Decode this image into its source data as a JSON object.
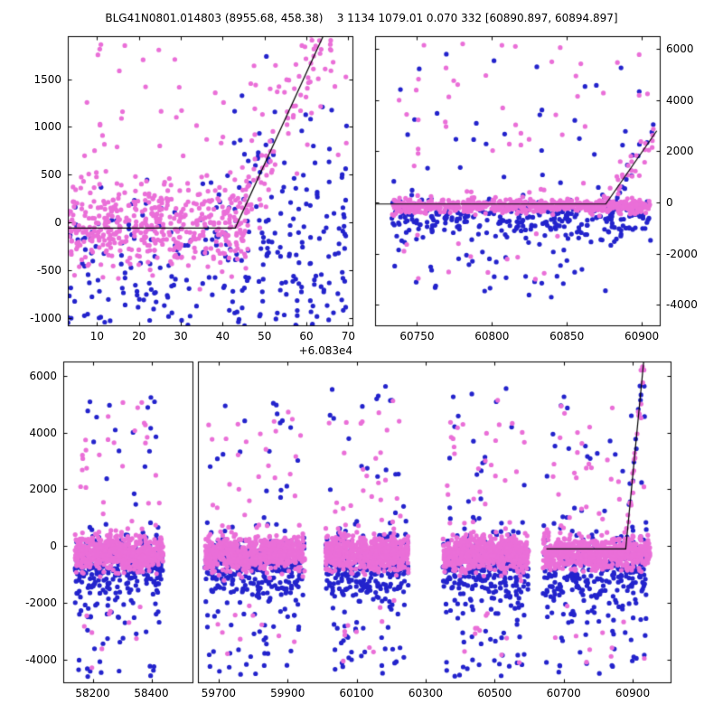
{
  "title": "BLG41N0801.014803 (8955.68, 458.38)    3 1134 1079.01 0.070 332 [60890.897, 60894.897]",
  "colors": {
    "magenta": "#ea6fd8",
    "blue": "#2323cc",
    "model_line": "#000000",
    "frame": "#000000",
    "background": "#ffffff"
  },
  "chart_data": [
    {
      "id": "top-left-panel",
      "type": "scatter",
      "xlim": [
        3,
        71
      ],
      "ylim": [
        -1080,
        1950
      ],
      "xticks": [
        10,
        20,
        30,
        40,
        50,
        60,
        70
      ],
      "yticks": [
        -1000,
        -500,
        0,
        500,
        1000,
        1500
      ],
      "ytick_side": "left",
      "x_offset_label": "+6.083e4",
      "model_line": [
        [
          3,
          -60
        ],
        [
          43,
          -60
        ],
        [
          64,
          1950
        ]
      ],
      "clusters": [
        {
          "color": "magenta",
          "n": 470,
          "x": [
            3,
            46
          ],
          "y_mean": -30,
          "y_sigma": 230
        },
        {
          "color": "magenta",
          "n": 90,
          "x": [
            43,
            66
          ],
          "along_line": true,
          "y_sigma": 250
        },
        {
          "color": "magenta",
          "n": 55,
          "x": [
            3,
            70
          ],
          "uniform": true,
          "y_min": 450,
          "y_max": 1900
        },
        {
          "color": "blue",
          "n": 240,
          "x": [
            3,
            70
          ],
          "y_mean": -430,
          "y_sigma": 420
        },
        {
          "color": "blue",
          "n": 50,
          "x": [
            42,
            70
          ],
          "y_mean": 520,
          "y_sigma": 400
        },
        {
          "color": "blue",
          "n": 35,
          "x": [
            3,
            70
          ],
          "uniform": true,
          "y_min": -1080,
          "y_max": -650
        }
      ]
    },
    {
      "id": "top-right-panel",
      "type": "scatter",
      "xlim": [
        60722,
        60912
      ],
      "ylim": [
        -4800,
        6500
      ],
      "xticks": [
        60750,
        60800,
        60850,
        60900
      ],
      "yticks": [
        -4000,
        -2000,
        0,
        2000,
        4000,
        6000
      ],
      "ytick_side": "right",
      "model_line": [
        [
          60722,
          -60
        ],
        [
          60876,
          -60
        ],
        [
          60910,
          2800
        ]
      ],
      "clusters": [
        {
          "color": "magenta",
          "n": 580,
          "x": [
            60733,
            60906
          ],
          "y_mean": -130,
          "y_sigma": 140
        },
        {
          "color": "blue",
          "n": 300,
          "x": [
            60733,
            60906
          ],
          "y_mean": -620,
          "y_sigma": 430
        },
        {
          "color": "magenta",
          "n": 45,
          "x": [
            60733,
            60906
          ],
          "uniform": true,
          "y_min": 300,
          "y_max": 6300
        },
        {
          "color": "blue",
          "n": 30,
          "x": [
            60733,
            60906
          ],
          "uniform": true,
          "y_min": 500,
          "y_max": 6000
        },
        {
          "color": "blue",
          "n": 40,
          "x": [
            60733,
            60906
          ],
          "uniform": true,
          "y_min": -3700,
          "y_max": -1300
        },
        {
          "color": "magenta",
          "n": 14,
          "x": [
            60733,
            60906
          ],
          "uniform": true,
          "y_min": -3000,
          "y_max": -1100
        },
        {
          "color": "magenta",
          "n": 32,
          "x": [
            60874,
            60908
          ],
          "along_line": true,
          "y_sigma": 350
        },
        {
          "color": "blue",
          "n": 16,
          "x": [
            60874,
            60908
          ],
          "along_line": true,
          "y_sigma": 450
        }
      ]
    },
    {
      "id": "bottom-panel",
      "type": "scatter",
      "ylim": [
        -4800,
        6500
      ],
      "yticks": [
        -4000,
        -2000,
        0,
        2000,
        4000,
        6000
      ],
      "ytick_side": "left",
      "segments": [
        {
          "xlim": [
            58100,
            58540
          ],
          "xticks": [
            58200,
            58400
          ],
          "width_frac": 0.215
        },
        {
          "xlim": [
            59640,
            61010
          ],
          "xticks": [
            59700,
            59900,
            60100,
            60300,
            60500,
            60700,
            60900
          ],
          "width_frac": 0.785
        }
      ],
      "model_line": [
        [
          60650,
          -100
        ],
        [
          60880,
          -100
        ],
        [
          60932,
          6500
        ]
      ],
      "clusters": [
        {
          "color": "magenta",
          "n": 620,
          "x": [
            58140,
            58440
          ],
          "y_mean": -250,
          "y_sigma": 300
        },
        {
          "color": "blue",
          "n": 300,
          "x": [
            58140,
            58440
          ],
          "y_mean": -800,
          "y_sigma": 650
        },
        {
          "color": "magenta",
          "n": 28,
          "x": [
            58150,
            58430
          ],
          "uniform": true,
          "y_min": 700,
          "y_max": 5200
        },
        {
          "color": "blue",
          "n": 30,
          "x": [
            58150,
            58430
          ],
          "uniform": true,
          "y_min": -4600,
          "y_max": -2300
        },
        {
          "color": "blue",
          "n": 18,
          "x": [
            58150,
            58430
          ],
          "uniform": true,
          "y_min": 1200,
          "y_max": 5700
        },
        {
          "color": "magenta",
          "n": 10,
          "x": [
            58150,
            58430
          ],
          "uniform": true,
          "y_min": -4300,
          "y_max": -1900
        },
        {
          "color": "magenta",
          "n": 620,
          "x": [
            59660,
            59950
          ],
          "y_mean": -250,
          "y_sigma": 300
        },
        {
          "color": "blue",
          "n": 300,
          "x": [
            59660,
            59950
          ],
          "y_mean": -800,
          "y_sigma": 650
        },
        {
          "color": "magenta",
          "n": 28,
          "x": [
            59670,
            59940
          ],
          "uniform": true,
          "y_min": 700,
          "y_max": 5200
        },
        {
          "color": "blue",
          "n": 30,
          "x": [
            59670,
            59940
          ],
          "uniform": true,
          "y_min": -4600,
          "y_max": -2300
        },
        {
          "color": "blue",
          "n": 18,
          "x": [
            59670,
            59940
          ],
          "uniform": true,
          "y_min": 1200,
          "y_max": 5700
        },
        {
          "color": "magenta",
          "n": 10,
          "x": [
            59670,
            59940
          ],
          "uniform": true,
          "y_min": -4300,
          "y_max": -1900
        },
        {
          "color": "magenta",
          "n": 620,
          "x": [
            60010,
            60250
          ],
          "y_mean": -250,
          "y_sigma": 300
        },
        {
          "color": "blue",
          "n": 300,
          "x": [
            60010,
            60250
          ],
          "y_mean": -800,
          "y_sigma": 650
        },
        {
          "color": "magenta",
          "n": 28,
          "x": [
            60020,
            60240
          ],
          "uniform": true,
          "y_min": 700,
          "y_max": 5200
        },
        {
          "color": "blue",
          "n": 30,
          "x": [
            60020,
            60240
          ],
          "uniform": true,
          "y_min": -4600,
          "y_max": -2300
        },
        {
          "color": "blue",
          "n": 18,
          "x": [
            60020,
            60240
          ],
          "uniform": true,
          "y_min": 1200,
          "y_max": 5700
        },
        {
          "color": "magenta",
          "n": 10,
          "x": [
            60020,
            60240
          ],
          "uniform": true,
          "y_min": -4300,
          "y_max": -1900
        },
        {
          "color": "magenta",
          "n": 620,
          "x": [
            60350,
            60600
          ],
          "y_mean": -250,
          "y_sigma": 300
        },
        {
          "color": "blue",
          "n": 300,
          "x": [
            60350,
            60600
          ],
          "y_mean": -800,
          "y_sigma": 650
        },
        {
          "color": "magenta",
          "n": 28,
          "x": [
            60360,
            60590
          ],
          "uniform": true,
          "y_min": 700,
          "y_max": 5200
        },
        {
          "color": "blue",
          "n": 30,
          "x": [
            60360,
            60590
          ],
          "uniform": true,
          "y_min": -4600,
          "y_max": -2300
        },
        {
          "color": "blue",
          "n": 18,
          "x": [
            60360,
            60590
          ],
          "uniform": true,
          "y_min": 1200,
          "y_max": 5700
        },
        {
          "color": "magenta",
          "n": 10,
          "x": [
            60360,
            60590
          ],
          "uniform": true,
          "y_min": -4300,
          "y_max": -1900
        },
        {
          "color": "magenta",
          "n": 620,
          "x": [
            60640,
            60950
          ],
          "y_mean": -250,
          "y_sigma": 300
        },
        {
          "color": "blue",
          "n": 300,
          "x": [
            60640,
            60950
          ],
          "y_mean": -800,
          "y_sigma": 650
        },
        {
          "color": "magenta",
          "n": 28,
          "x": [
            60650,
            60940
          ],
          "uniform": true,
          "y_min": 700,
          "y_max": 5200
        },
        {
          "color": "blue",
          "n": 30,
          "x": [
            60650,
            60940
          ],
          "uniform": true,
          "y_min": -4600,
          "y_max": -2300
        },
        {
          "color": "blue",
          "n": 18,
          "x": [
            60650,
            60940
          ],
          "uniform": true,
          "y_min": 1200,
          "y_max": 5700
        },
        {
          "color": "magenta",
          "n": 10,
          "x": [
            60650,
            60940
          ],
          "uniform": true,
          "y_min": -4300,
          "y_max": -1900
        },
        {
          "color": "magenta",
          "n": 24,
          "x": [
            60880,
            60934
          ],
          "along_line": true,
          "y_sigma": 300
        },
        {
          "color": "blue",
          "n": 12,
          "x": [
            60880,
            60934
          ],
          "along_line": true,
          "y_sigma": 350
        }
      ]
    }
  ]
}
